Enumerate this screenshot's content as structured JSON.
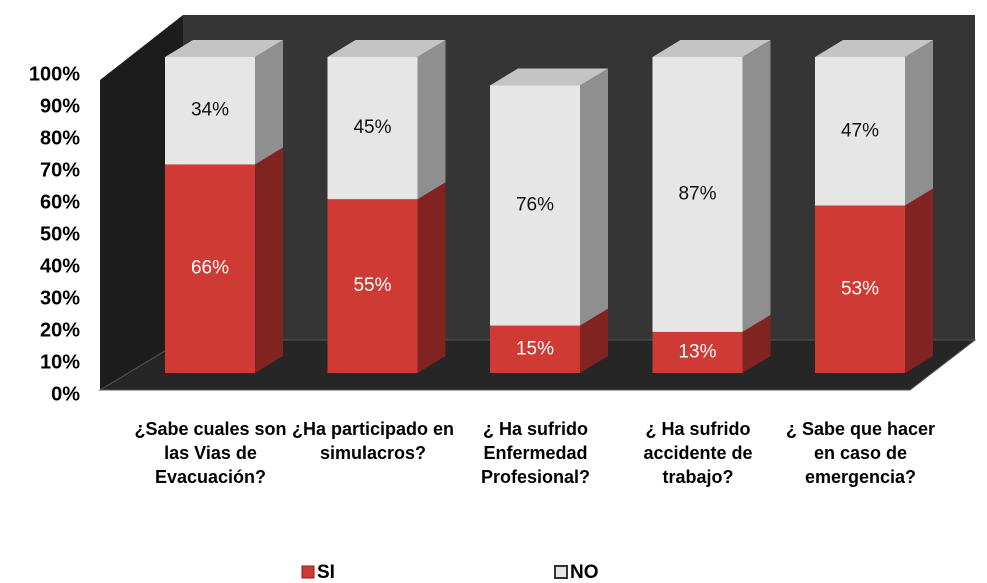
{
  "chart_data": {
    "type": "bar",
    "stacked": true,
    "three_d": true,
    "categories": [
      "¿Sabe cuales son las Vias de Evacuación?",
      "¿Ha participado en simulacros?",
      "¿ Ha sufrido Enfermedad Profesional?",
      "¿ Ha sufrido accidente de trabajo?",
      "¿ Sabe que hacer en caso de emergencia?"
    ],
    "series": [
      {
        "name": "SI",
        "color": "#d03a35",
        "values": [
          66,
          55,
          15,
          13,
          53
        ],
        "value_labels": [
          "66%",
          "55%",
          "15%",
          "13%",
          "53%"
        ]
      },
      {
        "name": "NO",
        "color": "#e6e6e6",
        "values": [
          34,
          45,
          76,
          87,
          47
        ],
        "value_labels": [
          "34%",
          "45%",
          "76%",
          "87%",
          "47%"
        ]
      }
    ],
    "ylim": [
      0,
      100
    ],
    "yticks": [
      {
        "value": 0,
        "label": "0%"
      },
      {
        "value": 10,
        "label": "10%"
      },
      {
        "value": 20,
        "label": "20%"
      },
      {
        "value": 30,
        "label": "30%"
      },
      {
        "value": 40,
        "label": "40%"
      },
      {
        "value": 50,
        "label": "50%"
      },
      {
        "value": 60,
        "label": "60%"
      },
      {
        "value": 70,
        "label": "70%"
      },
      {
        "value": 80,
        "label": "80%"
      },
      {
        "value": 90,
        "label": "90%"
      },
      {
        "value": 100,
        "label": "100%"
      }
    ],
    "legend": "bottom"
  }
}
